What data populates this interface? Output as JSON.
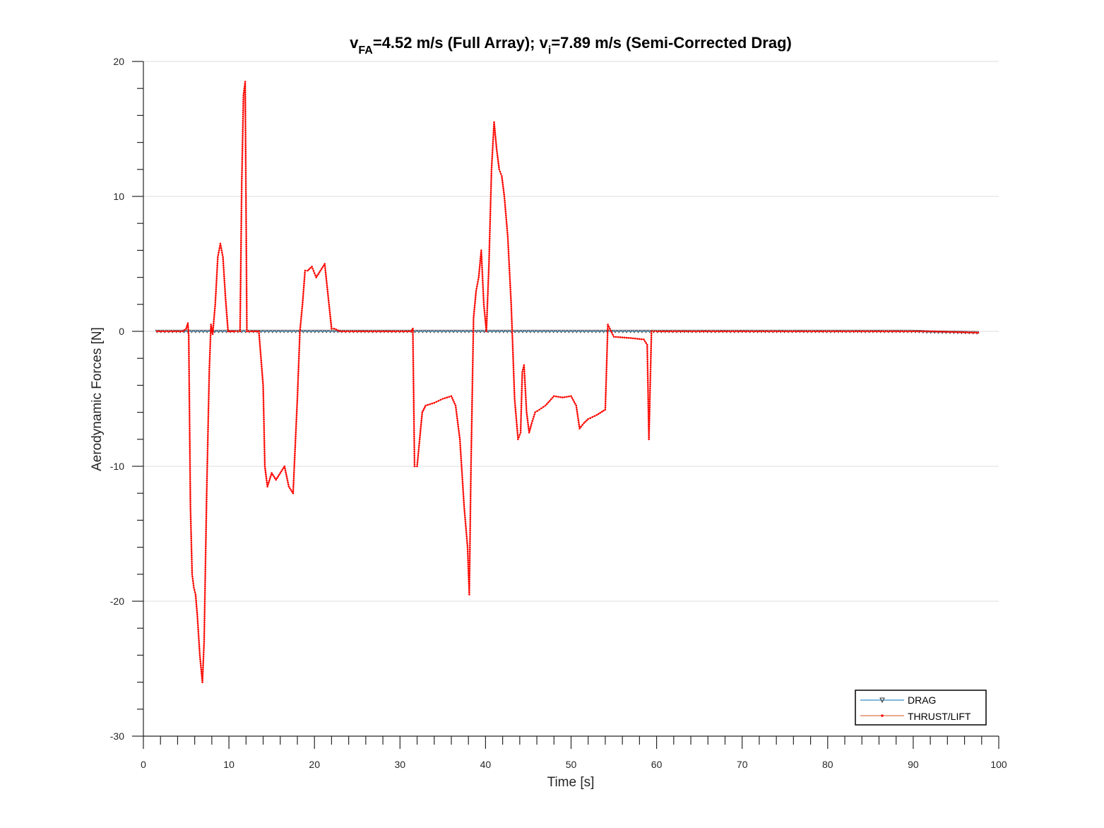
{
  "chart_data": {
    "type": "line",
    "title": {
      "v_symbol": "v",
      "v_fa_subscript": "FA",
      "v_fa_value": "=4.52 m/s (Full Array); ",
      "v_i_symbol": "v",
      "v_i_subscript": "i",
      "v_i_value": "=7.89 m/s (Semi-Corrected Drag)"
    },
    "xlabel": "Time [s]",
    "ylabel": "Aerodynamic Forces [N]",
    "xlim": [
      0,
      100
    ],
    "ylim": [
      -30,
      20
    ],
    "x_ticks": [
      0,
      10,
      20,
      30,
      40,
      50,
      60,
      70,
      80,
      90,
      100
    ],
    "x_tick_labels": [
      "0",
      "10",
      "20",
      "30",
      "40",
      "50",
      "60",
      "70",
      "80",
      "90",
      "100"
    ],
    "y_ticks": [
      -30,
      -20,
      -10,
      0,
      10,
      20
    ],
    "y_tick_labels": [
      "-30",
      "-20",
      "-10",
      "0",
      "10",
      "20"
    ],
    "grid": "horizontal major",
    "legend_position": "bottom-right",
    "colors": {
      "drag_line": "#0072BD",
      "drag_marker": "#333333",
      "thrust_line": "#D95319",
      "thrust_marker": "#FF0000",
      "grid": "#e3e3e3",
      "axis": "#262626"
    },
    "series": [
      {
        "name": "DRAG",
        "marker": "down-triangle",
        "x": [
          1.6,
          10,
          20,
          30,
          40,
          50,
          59,
          60,
          70,
          80,
          90,
          92,
          97.6
        ],
        "y": [
          0,
          0,
          0,
          0,
          0,
          0,
          0,
          0,
          0,
          0,
          0,
          -0.05,
          -0.1
        ]
      },
      {
        "name": "THRUST/LIFT",
        "marker": "dot",
        "x": [
          1.6,
          4.6,
          5.0,
          5.2,
          5.3,
          5.5,
          5.7,
          5.9,
          6.1,
          6.3,
          6.6,
          6.9,
          7.1,
          7.4,
          7.7,
          7.9,
          8.1,
          8.4,
          8.7,
          9.0,
          9.3,
          9.6,
          9.9,
          10.3,
          10.7,
          11.3,
          11.5,
          11.7,
          11.9,
          12.1,
          12.3,
          12.6,
          13.5,
          14.0,
          14.2,
          14.5,
          15.0,
          15.5,
          16.0,
          16.5,
          17.0,
          17.5,
          18.0,
          18.3,
          18.6,
          18.9,
          19.2,
          19.7,
          20.2,
          20.7,
          21.2,
          21.7,
          22.0,
          22.3,
          23.0,
          31.3,
          31.5,
          31.7,
          32.0,
          32.3,
          32.6,
          33.0,
          34.0,
          35.0,
          36.0,
          36.5,
          37.0,
          37.5,
          37.9,
          38.1,
          38.3,
          38.6,
          38.9,
          39.2,
          39.5,
          39.8,
          40.1,
          40.4,
          40.7,
          41.0,
          41.3,
          41.6,
          41.9,
          42.2,
          42.6,
          43.0,
          43.4,
          43.8,
          44.1,
          44.3,
          44.5,
          44.8,
          45.1,
          45.4,
          45.8,
          46.3,
          47.0,
          48.0,
          49.0,
          50.0,
          50.6,
          51.0,
          51.5,
          52.0,
          53.0,
          54.0,
          54.3,
          55.0,
          57.0,
          58.5,
          58.9,
          59.1,
          59.4,
          60.0,
          70.0,
          80.0,
          90.0,
          92.0,
          97.6
        ],
        "y": [
          0,
          0,
          0.2,
          0.6,
          -0.3,
          -13,
          -18,
          -19,
          -19.5,
          -21,
          -24,
          -26,
          -23,
          -12,
          -3,
          0.5,
          -0.2,
          2,
          5.5,
          6.5,
          5.5,
          2.5,
          0,
          0,
          0,
          0,
          11,
          17.5,
          18.5,
          0,
          0,
          0,
          0,
          -4,
          -10,
          -11.5,
          -10.5,
          -11,
          -10.5,
          -10,
          -11.5,
          -12,
          -5,
          0,
          2,
          4.5,
          4.5,
          4.8,
          4,
          4.5,
          5,
          2,
          0.2,
          0.2,
          0,
          0,
          0.2,
          -10,
          -10,
          -8,
          -6,
          -5.5,
          -5.3,
          -5,
          -4.8,
          -5.5,
          -8,
          -13,
          -16,
          -19.5,
          -10,
          1,
          3,
          4,
          6,
          2,
          0,
          5,
          12,
          15.5,
          13.5,
          12,
          11.5,
          10,
          7,
          2,
          -5,
          -8,
          -7.5,
          -3,
          -2.5,
          -6,
          -7.5,
          -6.8,
          -6,
          -5.8,
          -5.5,
          -4.8,
          -4.9,
          -4.8,
          -5.5,
          -7.2,
          -6.8,
          -6.5,
          -6.2,
          -5.8,
          0.5,
          -0.4,
          -0.5,
          -0.6,
          -1,
          -8,
          0,
          0,
          0,
          0,
          0,
          0,
          -0.1
        ]
      }
    ]
  }
}
